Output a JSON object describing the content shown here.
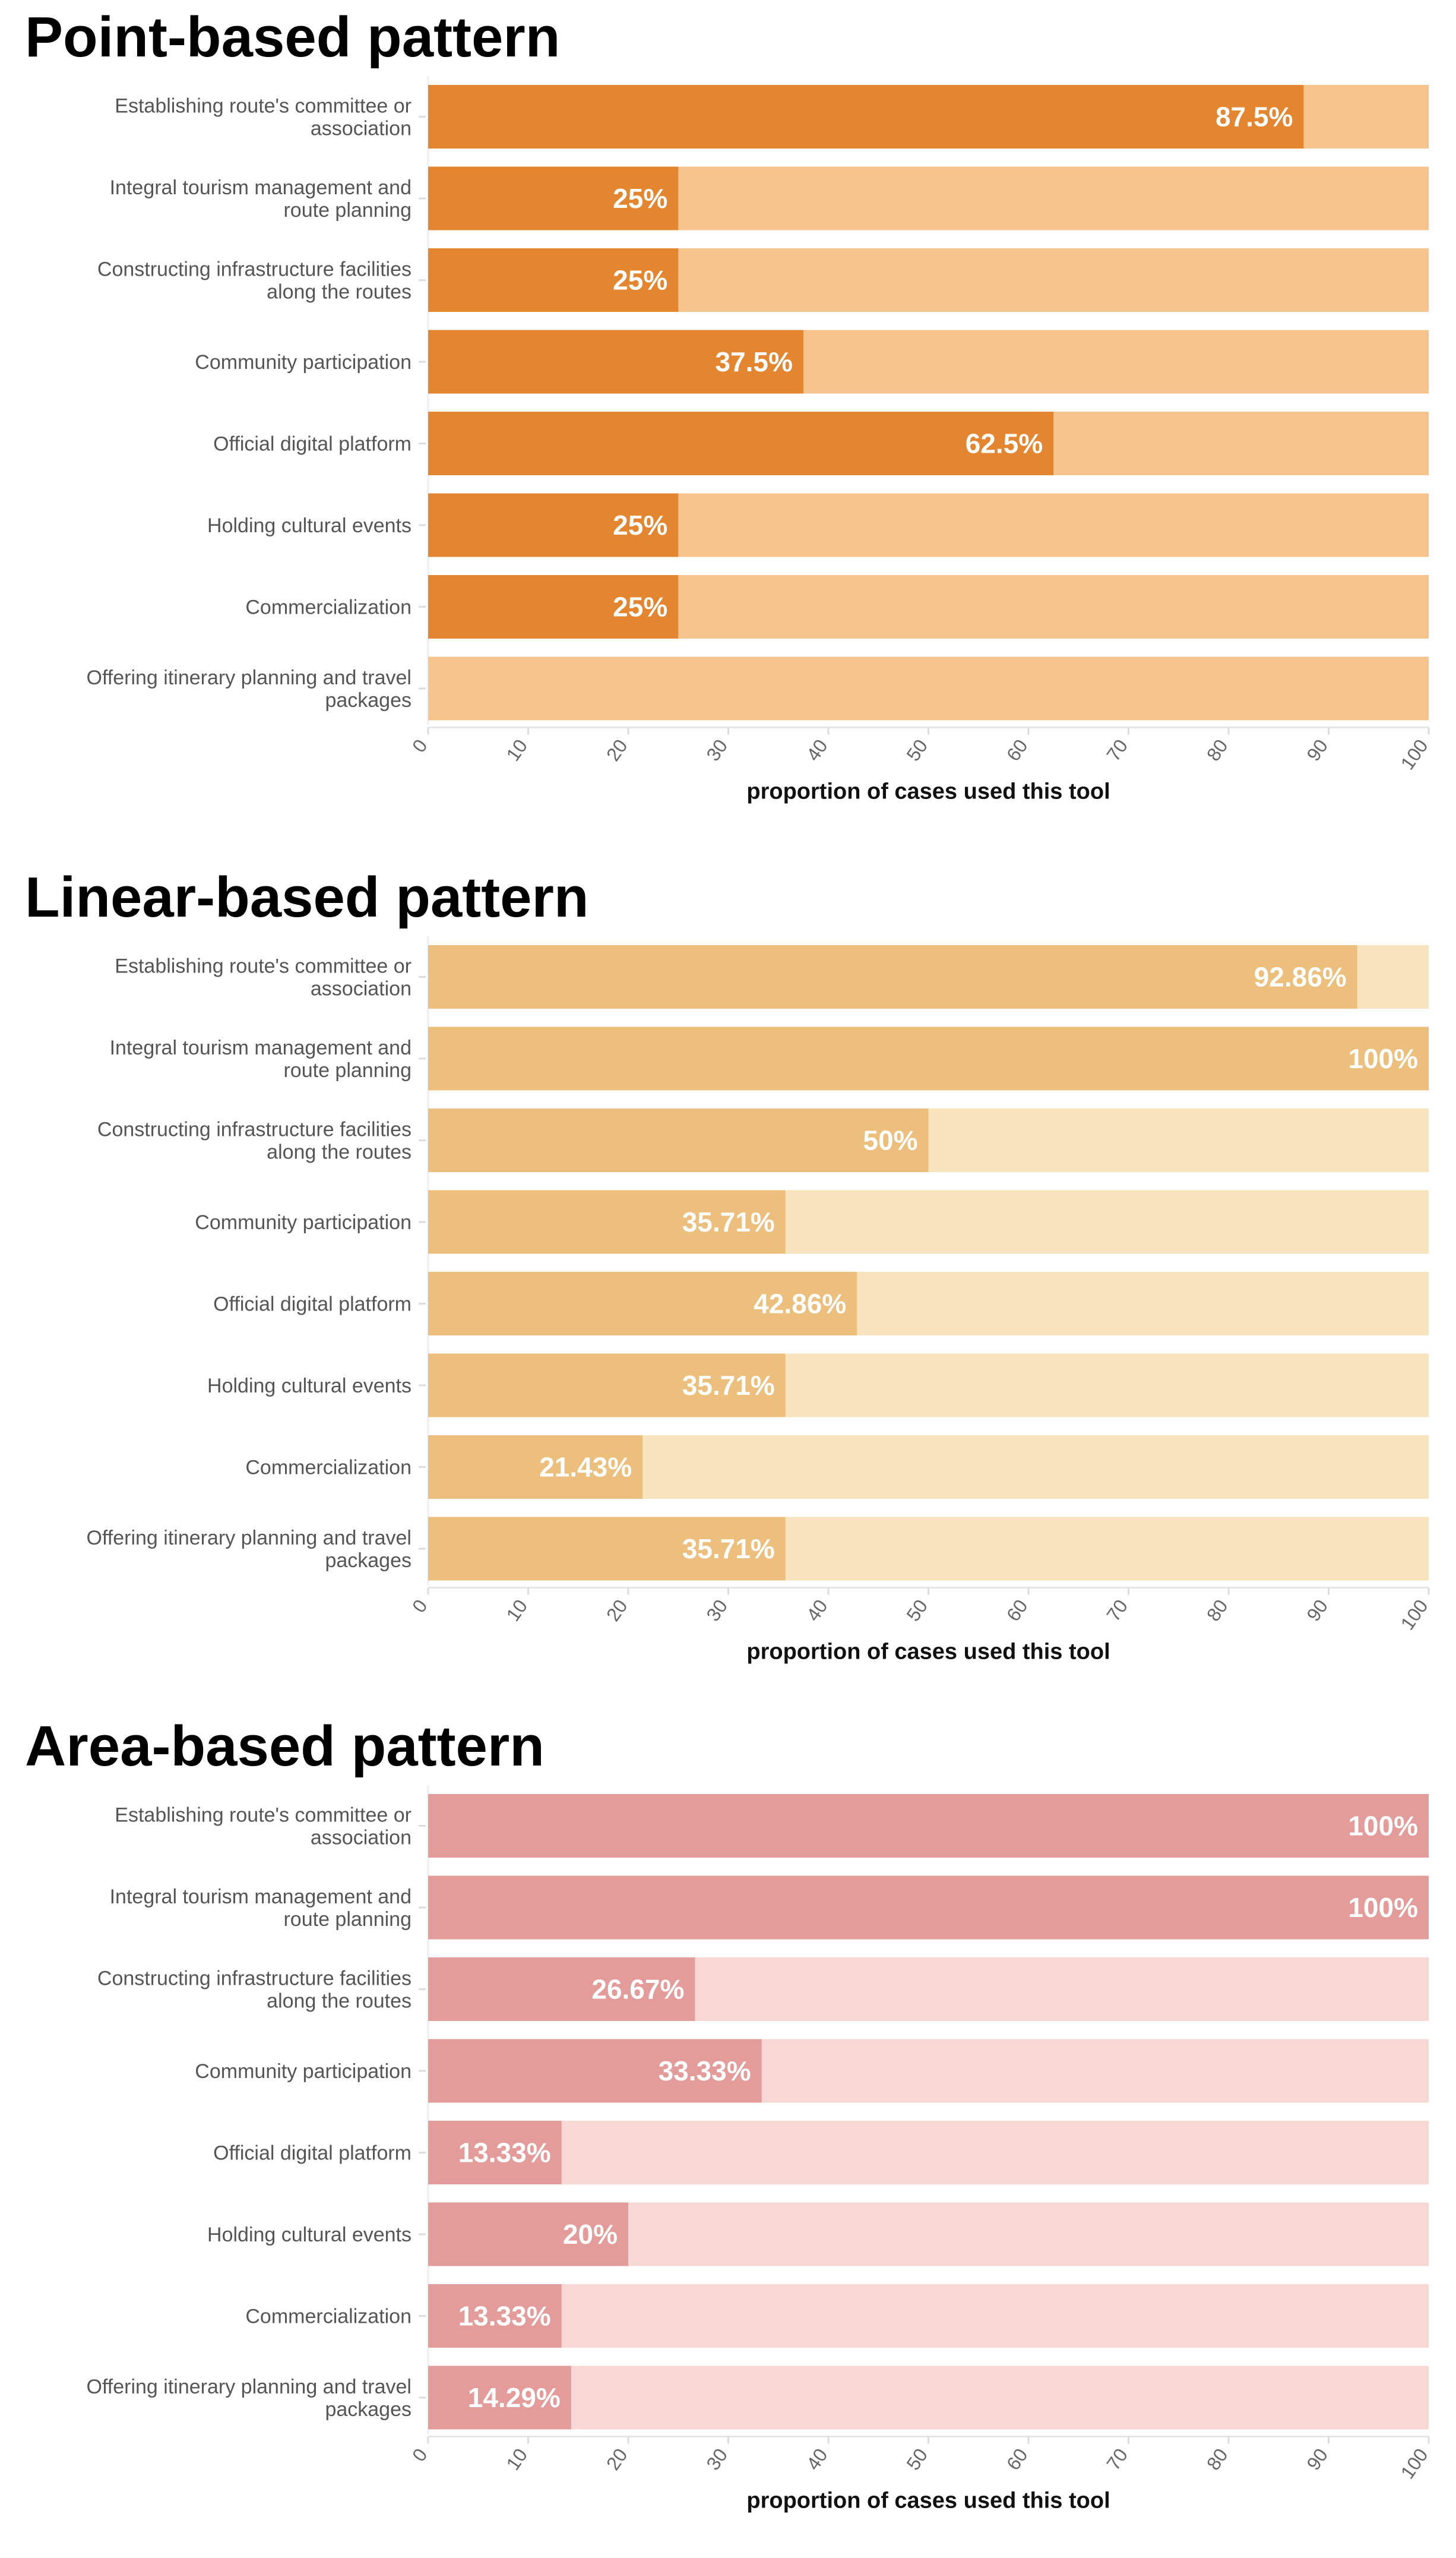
{
  "chart_data": [
    {
      "type": "bar",
      "orientation": "horizontal",
      "stacked_background": true,
      "title": "Point-based pattern",
      "xlabel": "proportion of cases used this tool",
      "xlim": [
        0,
        100
      ],
      "xticks": [
        0,
        10,
        20,
        30,
        40,
        50,
        60,
        70,
        80,
        90,
        100
      ],
      "colors": {
        "value": "#E3862F",
        "background": "#F7C48E"
      },
      "categories": [
        [
          "Establishing route's committee or",
          "association"
        ],
        [
          "Integral tourism management and",
          "route planning"
        ],
        [
          "Constructing infrastructure facilities",
          "along the routes"
        ],
        [
          "Community participation"
        ],
        [
          "Official digital platform"
        ],
        [
          "Holding cultural events"
        ],
        [
          "Commercialization"
        ],
        [
          "Offering itinerary planning and travel",
          "packages"
        ]
      ],
      "values": [
        87.5,
        25,
        25,
        37.5,
        62.5,
        25,
        25,
        0
      ],
      "data_labels": [
        "87.5%",
        "25%",
        "25%",
        "37.5%",
        "62.5%",
        "25%",
        "25%",
        ""
      ]
    },
    {
      "type": "bar",
      "orientation": "horizontal",
      "stacked_background": true,
      "title": "Linear-based pattern",
      "xlabel": "proportion of cases used this tool",
      "xlim": [
        0,
        100
      ],
      "xticks": [
        0,
        10,
        20,
        30,
        40,
        50,
        60,
        70,
        80,
        90,
        100
      ],
      "colors": {
        "value": "#ECBF7C",
        "background": "#F7E4BC"
      },
      "categories": [
        [
          "Establishing route's committee or",
          "association"
        ],
        [
          "Integral tourism management and",
          "route planning"
        ],
        [
          "Constructing infrastructure facilities",
          "along the routes"
        ],
        [
          "Community participation"
        ],
        [
          "Official digital platform"
        ],
        [
          "Holding cultural events"
        ],
        [
          "Commercialization"
        ],
        [
          "Offering itinerary planning and travel",
          "packages"
        ]
      ],
      "values": [
        92.86,
        100,
        50,
        35.71,
        42.86,
        35.71,
        21.43,
        35.71
      ],
      "data_labels": [
        "92.86%",
        "100%",
        "50%",
        "35.71%",
        "42.86%",
        "35.71%",
        "21.43%",
        "35.71%"
      ]
    },
    {
      "type": "bar",
      "orientation": "horizontal",
      "stacked_background": true,
      "title": "Area-based pattern",
      "xlabel": "proportion of cases used this tool",
      "xlim": [
        0,
        100
      ],
      "xticks": [
        0,
        10,
        20,
        30,
        40,
        50,
        60,
        70,
        80,
        90,
        100
      ],
      "colors": {
        "value": "#E39C9A",
        "background": "#F8D8D4"
      },
      "categories": [
        [
          "Establishing route's committee or",
          "association"
        ],
        [
          "Integral tourism management and",
          "route planning"
        ],
        [
          "Constructing infrastructure facilities",
          "along the routes"
        ],
        [
          "Community participation"
        ],
        [
          "Official digital platform"
        ],
        [
          "Holding cultural events"
        ],
        [
          "Commercialization"
        ],
        [
          "Offering itinerary planning and travel",
          "packages"
        ]
      ],
      "values": [
        100,
        100,
        26.67,
        33.33,
        13.33,
        20,
        13.33,
        14.29
      ],
      "data_labels": [
        "100%",
        "100%",
        "26.67%",
        "33.33%",
        "13.33%",
        "20%",
        "13.33%",
        "14.29%"
      ]
    }
  ]
}
